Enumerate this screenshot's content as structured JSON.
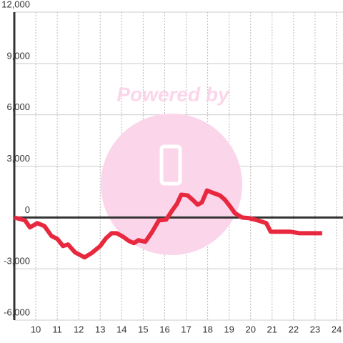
{
  "chart_data": {
    "type": "line",
    "watermark": "Powered by",
    "x": [
      9.0,
      9.5,
      9.73,
      10.07,
      10.4,
      10.73,
      11.0,
      11.27,
      11.5,
      11.83,
      12.27,
      12.6,
      13.0,
      13.27,
      13.53,
      13.77,
      14.07,
      14.33,
      14.57,
      14.77,
      15.1,
      15.4,
      15.73,
      16.07,
      16.33,
      16.57,
      16.77,
      17.07,
      17.33,
      17.53,
      17.73,
      17.97,
      18.2,
      18.57,
      18.8,
      19.03,
      19.27,
      19.6,
      19.93,
      20.33,
      20.73,
      20.93,
      21.83,
      22.27,
      23.33
    ],
    "series": [
      {
        "color": "#e8283f",
        "values": [
          0,
          -170,
          -580,
          -330,
          -500,
          -1080,
          -1250,
          -1670,
          -1580,
          -2040,
          -2330,
          -2080,
          -1670,
          -1210,
          -920,
          -920,
          -1130,
          -1370,
          -1500,
          -1330,
          -1420,
          -875,
          -170,
          -125,
          375,
          790,
          1330,
          1290,
          1000,
          750,
          875,
          1580,
          1460,
          1290,
          1040,
          670,
          250,
          0,
          -40,
          -170,
          -330,
          -830,
          -830,
          -920,
          -920
        ]
      }
    ],
    "xlim": [
      9,
      24.3
    ],
    "xticks": [
      10,
      11,
      12,
      13,
      14,
      15,
      16,
      17,
      18,
      19,
      20,
      21,
      22,
      23,
      24
    ],
    "ylim": [
      -6000,
      12000
    ],
    "yticks": [
      {
        "value": -6000,
        "label": "-6,000"
      },
      {
        "value": -3000,
        "label": "-3,000"
      },
      0,
      {
        "value": 3000,
        "label": "3,000"
      },
      {
        "value": 6000,
        "label": "6,000"
      },
      {
        "value": 9000,
        "label": "9,000"
      },
      {
        "value": 12000,
        "label": "12,000"
      }
    ],
    "grid": true
  }
}
